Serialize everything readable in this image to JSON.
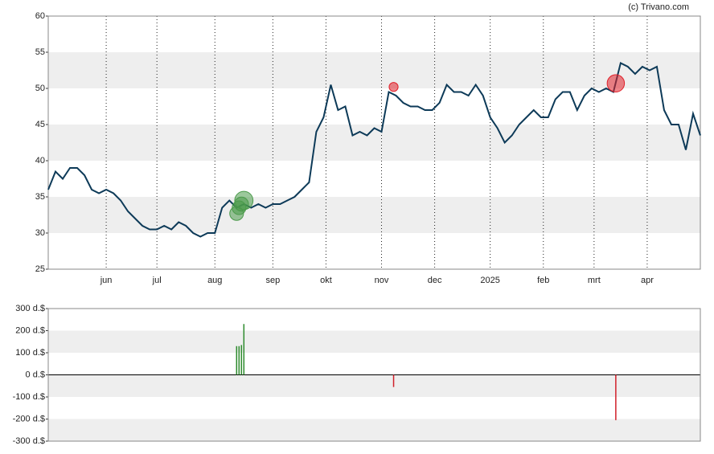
{
  "source": "(c) Trivano.com",
  "chart_data": [
    {
      "type": "line",
      "color": "#0d3a58",
      "x": [
        0,
        3,
        6,
        9,
        12,
        15,
        18,
        21,
        24,
        27,
        30,
        33,
        36,
        39,
        42,
        45,
        48,
        51,
        54,
        57,
        60,
        63,
        66,
        69,
        72,
        75,
        78,
        81,
        84,
        87,
        90,
        93,
        96,
        99,
        102,
        105,
        108,
        111,
        114,
        117,
        120,
        123,
        126,
        129,
        132,
        135,
        138,
        141,
        144,
        147,
        150,
        153,
        156,
        159,
        162,
        165,
        168,
        171,
        174,
        177,
        180,
        183,
        186,
        189,
        192,
        195,
        198,
        201,
        204,
        207,
        210,
        213,
        216,
        219,
        222,
        225,
        228,
        231,
        234,
        237,
        240,
        243,
        246,
        249,
        252,
        255,
        258,
        261,
        264,
        267,
        270
      ],
      "values": [
        36,
        38.5,
        37.5,
        39,
        39,
        38,
        36,
        35.5,
        36,
        35.5,
        34.5,
        33,
        32,
        31,
        30.5,
        30.5,
        31,
        30.5,
        31.5,
        31,
        30,
        29.5,
        30,
        30,
        33.5,
        34.5,
        33.5,
        34,
        33.5,
        34,
        33.5,
        34,
        34,
        34.5,
        35,
        36,
        37,
        44,
        46,
        50.5,
        47,
        47.5,
        43.5,
        44,
        43.5,
        44.5,
        44,
        49.5,
        49,
        48,
        47.5,
        47.5,
        47,
        47,
        48,
        50.5,
        49.5,
        49.5,
        49,
        50.5,
        49,
        46,
        44.5,
        42.5,
        43.5,
        45,
        46,
        47,
        46,
        46,
        48.5,
        49.5,
        49.5,
        47,
        49,
        50,
        49.5,
        50,
        49.5,
        53.5,
        53,
        52,
        53,
        52.5,
        53,
        47,
        45,
        45,
        41.5,
        46.5,
        43.5
      ],
      "xlim": [
        0,
        270
      ],
      "ylim": [
        25,
        60
      ],
      "yticks": [
        25,
        30,
        35,
        40,
        45,
        50,
        55,
        60
      ],
      "xticks": [
        {
          "value": 24,
          "label": "jun"
        },
        {
          "value": 45,
          "label": "jul"
        },
        {
          "value": 69,
          "label": "aug"
        },
        {
          "value": 93,
          "label": "sep"
        },
        {
          "value": 115,
          "label": "okt"
        },
        {
          "value": 138,
          "label": "nov"
        },
        {
          "value": 160,
          "label": "dec"
        },
        {
          "value": 183,
          "label": "2025"
        },
        {
          "value": 205,
          "label": "feb"
        },
        {
          "value": 226,
          "label": "mrt"
        },
        {
          "value": 248,
          "label": "apr"
        }
      ],
      "markers": {
        "x": [
          78,
          79,
          80,
          81,
          143,
          235
        ],
        "values": [
          32.7,
          33.5,
          34,
          34.5,
          50.2,
          50.7
        ],
        "size": [
          130,
          130,
          135,
          230,
          55,
          205
        ],
        "colors": [
          "#4a9a4a",
          "#4a9a4a",
          "#4a9a4a",
          "#4a9a4a",
          "#e0202a",
          "#e0202a"
        ]
      }
    },
    {
      "type": "bar",
      "x": [
        78,
        79,
        80,
        81,
        143,
        235
      ],
      "values": [
        130,
        130,
        135,
        230,
        -55,
        -205
      ],
      "colors": [
        "#2e8b2e",
        "#2e8b2e",
        "#2e8b2e",
        "#2e8b2e",
        "#d0202a",
        "#d0202a"
      ],
      "xlim": [
        0,
        270
      ],
      "ylim": [
        -300,
        300
      ],
      "yticks": [
        {
          "value": -300,
          "label": "-300 d.$"
        },
        {
          "value": -200,
          "label": "-200 d.$"
        },
        {
          "value": -100,
          "label": "-100 d.$"
        },
        {
          "value": 0,
          "label": "0 d.$"
        },
        {
          "value": 100,
          "label": "100 d.$"
        },
        {
          "value": 200,
          "label": "200 d.$"
        },
        {
          "value": 300,
          "label": "300 d.$"
        }
      ]
    }
  ]
}
